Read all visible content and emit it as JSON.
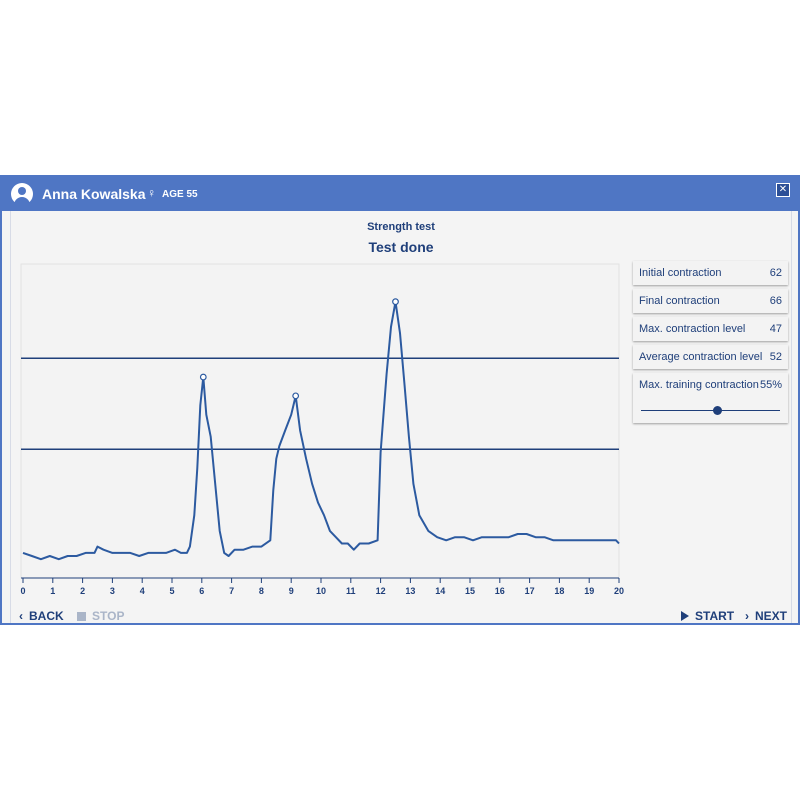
{
  "header": {
    "user_name": "Anna Kowalska",
    "gender_icon": "female-icon",
    "age_label": "AGE 55",
    "close_icon": "close-icon"
  },
  "test": {
    "subtitle": "Strength test",
    "status": "Test done"
  },
  "stats": [
    {
      "label": "Initial contraction",
      "value": "62"
    },
    {
      "label": "Final contraction",
      "value": "66"
    },
    {
      "label": "Max. contraction level",
      "value": "47"
    },
    {
      "label": "Average contraction level",
      "value": "52"
    }
  ],
  "training": {
    "label": "Max. training contraction",
    "value": "55%",
    "level": 0.55
  },
  "footer": {
    "back": "BACK",
    "stop": "STOP",
    "start": "START",
    "next": "NEXT"
  },
  "colors": {
    "primary": "#4f76c4",
    "text": "#1f3f7a",
    "line": "#2c5aa0",
    "threshold": "#1f3f7a",
    "disabled": "#aab5c8"
  },
  "chart_data": {
    "type": "line",
    "xlim": [
      0,
      20
    ],
    "ylim": [
      0,
      100
    ],
    "xticks": [
      "0",
      "1",
      "2",
      "3",
      "4",
      "5",
      "6",
      "7",
      "8",
      "9",
      "10",
      "11",
      "12",
      "13",
      "14",
      "15",
      "16",
      "17",
      "18",
      "19",
      "20"
    ],
    "thresholds": [
      70,
      41
    ],
    "peaks": [
      [
        6.05,
        64
      ],
      [
        9.15,
        58
      ],
      [
        12.5,
        88
      ]
    ],
    "series": [
      {
        "points": [
          [
            0,
            8
          ],
          [
            0.3,
            7
          ],
          [
            0.6,
            6
          ],
          [
            0.9,
            7
          ],
          [
            1.2,
            6
          ],
          [
            1.5,
            7
          ],
          [
            1.8,
            7
          ],
          [
            2.1,
            8
          ],
          [
            2.4,
            8
          ],
          [
            2.5,
            10
          ],
          [
            2.7,
            9
          ],
          [
            3,
            8
          ],
          [
            3.3,
            8
          ],
          [
            3.6,
            8
          ],
          [
            3.9,
            7
          ],
          [
            4.2,
            8
          ],
          [
            4.5,
            8
          ],
          [
            4.8,
            8
          ],
          [
            5.1,
            9
          ],
          [
            5.3,
            8
          ],
          [
            5.5,
            8
          ],
          [
            5.6,
            10
          ],
          [
            5.75,
            20
          ],
          [
            5.85,
            35
          ],
          [
            5.95,
            55
          ],
          [
            6.05,
            64
          ],
          [
            6.15,
            52
          ],
          [
            6.3,
            45
          ],
          [
            6.45,
            30
          ],
          [
            6.6,
            15
          ],
          [
            6.75,
            8
          ],
          [
            6.9,
            7
          ],
          [
            7.1,
            9
          ],
          [
            7.4,
            9
          ],
          [
            7.7,
            10
          ],
          [
            8,
            10
          ],
          [
            8.3,
            12
          ],
          [
            8.4,
            28
          ],
          [
            8.5,
            38
          ],
          [
            8.6,
            42
          ],
          [
            8.8,
            47
          ],
          [
            9.0,
            52
          ],
          [
            9.15,
            58
          ],
          [
            9.3,
            47
          ],
          [
            9.5,
            38
          ],
          [
            9.7,
            30
          ],
          [
            9.9,
            24
          ],
          [
            10.1,
            20
          ],
          [
            10.3,
            15
          ],
          [
            10.5,
            13
          ],
          [
            10.7,
            11
          ],
          [
            10.9,
            11
          ],
          [
            11.1,
            9
          ],
          [
            11.3,
            11
          ],
          [
            11.6,
            11
          ],
          [
            11.9,
            12
          ],
          [
            12.0,
            40
          ],
          [
            12.2,
            65
          ],
          [
            12.35,
            80
          ],
          [
            12.5,
            88
          ],
          [
            12.65,
            78
          ],
          [
            12.8,
            62
          ],
          [
            12.95,
            45
          ],
          [
            13.1,
            30
          ],
          [
            13.3,
            20
          ],
          [
            13.6,
            15
          ],
          [
            13.9,
            13
          ],
          [
            14.2,
            12
          ],
          [
            14.5,
            13
          ],
          [
            14.8,
            13
          ],
          [
            15.1,
            12
          ],
          [
            15.4,
            13
          ],
          [
            15.7,
            13
          ],
          [
            16,
            13
          ],
          [
            16.3,
            13
          ],
          [
            16.6,
            14
          ],
          [
            16.9,
            14
          ],
          [
            17.2,
            13
          ],
          [
            17.5,
            13
          ],
          [
            17.8,
            12
          ],
          [
            18.1,
            12
          ],
          [
            18.4,
            12
          ],
          [
            18.7,
            12
          ],
          [
            19,
            12
          ],
          [
            19.3,
            12
          ],
          [
            19.6,
            12
          ],
          [
            19.9,
            12
          ],
          [
            20,
            11
          ]
        ]
      }
    ]
  }
}
